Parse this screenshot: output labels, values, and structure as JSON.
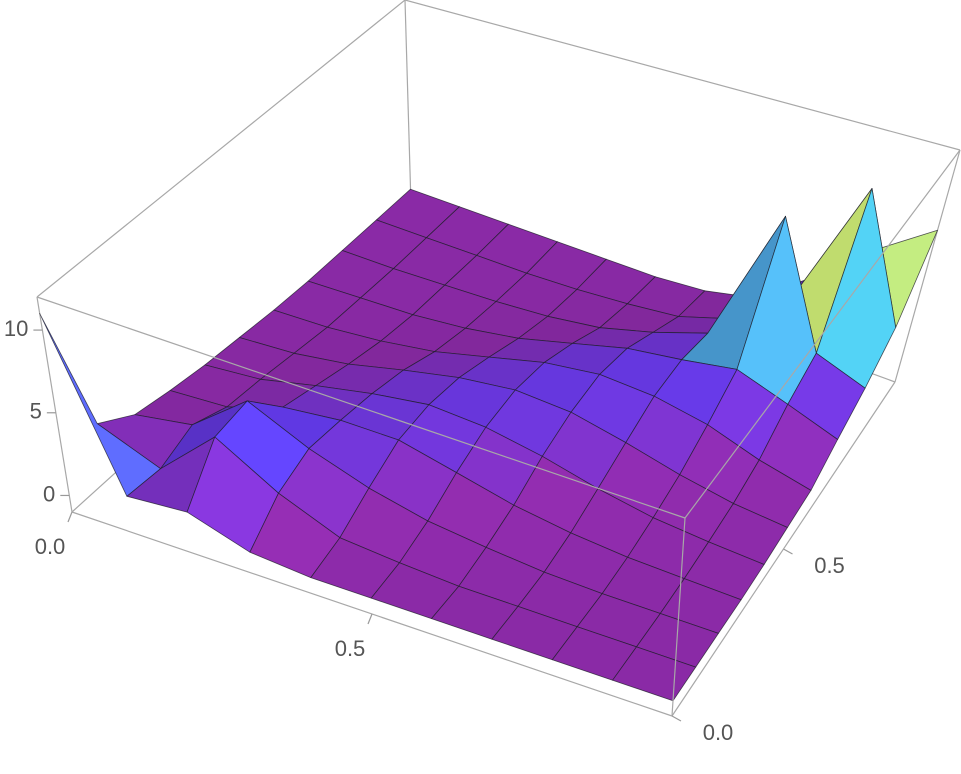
{
  "chart_data": {
    "type": "surface",
    "x": [
      0,
      0.1,
      0.2,
      0.3,
      0.4,
      0.5,
      0.6,
      0.7,
      0.8,
      0.9,
      1
    ],
    "y": [
      0,
      0.1,
      0.2,
      0.3,
      0.4,
      0.5,
      0.6,
      0.7,
      0.8,
      0.9,
      1
    ],
    "z": [
      [
        11,
        2.5,
        1.2,
        0.8,
        0.5,
        0.3,
        0.1,
        0,
        0,
        0,
        0
      ],
      [
        1.2,
        1.0,
        1.8,
        1.0,
        0.8,
        0.5,
        0.2,
        0.1,
        0,
        0,
        0
      ],
      [
        1.5,
        4.2,
        4.5,
        2.2,
        1.6,
        1.0,
        0.5,
        0.2,
        0.1,
        0,
        0
      ],
      [
        0.3,
        2.0,
        2.8,
        2.6,
        2.3,
        1.8,
        1.0,
        0.5,
        0.2,
        0,
        0
      ],
      [
        0,
        0.5,
        1.6,
        2.6,
        2.8,
        2.5,
        1.8,
        1.0,
        0.4,
        0.1,
        0
      ],
      [
        0,
        0.2,
        0.8,
        1.8,
        2.6,
        2.9,
        2.6,
        1.8,
        0.8,
        0.3,
        0
      ],
      [
        0,
        0,
        0.4,
        1.0,
        2.0,
        2.7,
        3.0,
        2.6,
        1.6,
        0.6,
        0.2
      ],
      [
        0,
        0,
        0.1,
        0.5,
        1.2,
        2.0,
        2.8,
        3.0,
        2.6,
        1.5,
        0.8
      ],
      [
        0,
        0,
        0,
        0.2,
        0.6,
        1.2,
        2.2,
        3.5,
        10.5,
        3.6,
        3.0
      ],
      [
        0,
        0,
        0,
        0.1,
        0.3,
        0.6,
        1.2,
        2.5,
        3.5,
        11,
        5.5
      ],
      [
        0,
        0,
        0,
        0,
        0.1,
        0.3,
        0.5,
        1.5,
        2.5,
        4.0,
        7.5
      ]
    ],
    "xlim": [
      0,
      1
    ],
    "ylim": [
      0,
      1
    ],
    "zlim": [
      -1,
      12
    ],
    "xticks": [
      {
        "value": 0,
        "label": "0.0"
      },
      {
        "value": 0.5,
        "label": "0.5"
      }
    ],
    "yticks": [
      {
        "value": 0,
        "label": "0.0"
      },
      {
        "value": 0.5,
        "label": "0.5"
      }
    ],
    "zticks": [
      0,
      5,
      10
    ],
    "mesh": true,
    "box": true,
    "colorscale": [
      "#8a2aa6",
      "#8a2aa6",
      "#5b3cf2",
      "#46c8d2",
      "#e6e24e",
      "#f08a24",
      "#c0301e"
    ]
  }
}
